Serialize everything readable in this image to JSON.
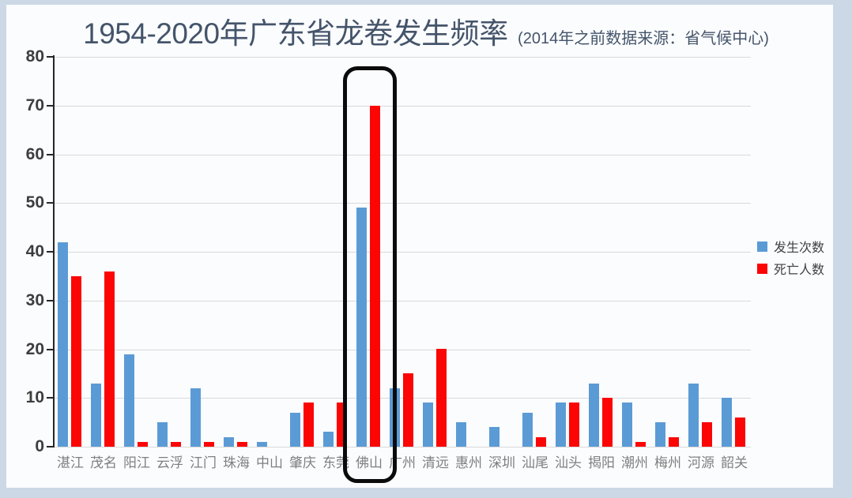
{
  "header": {
    "title": "1954-2020年广东省龙卷发生频率",
    "subtitle": "(2014年之前数据来源：省气候中心)"
  },
  "chart_data": {
    "type": "bar",
    "title": "1954-2020年广东省龙卷发生频率",
    "subtitle": "(2014年之前数据来源：省气候中心)",
    "categories": [
      "湛江",
      "茂名",
      "阳江",
      "云浮",
      "江门",
      "珠海",
      "中山",
      "肇庆",
      "东莞",
      "佛山",
      "广州",
      "清远",
      "惠州",
      "深圳",
      "汕尾",
      "汕头",
      "揭阳",
      "潮州",
      "梅州",
      "河源",
      "韶关"
    ],
    "series": [
      {
        "name": "发生次数",
        "color": "#5b9bd5",
        "values": [
          42,
          13,
          19,
          5,
          12,
          2,
          1,
          7,
          3,
          49,
          12,
          9,
          5,
          4,
          7,
          9,
          13,
          9,
          5,
          13,
          10
        ]
      },
      {
        "name": "死亡人数",
        "color": "#fb0505",
        "values": [
          35,
          36,
          1,
          1,
          1,
          1,
          0,
          9,
          9,
          70,
          15,
          20,
          0,
          0,
          2,
          9,
          10,
          1,
          2,
          5,
          6
        ]
      }
    ],
    "xlabel": "",
    "ylabel": "",
    "ylim": [
      0,
      80
    ],
    "yticks": [
      0,
      10,
      20,
      30,
      40,
      50,
      60,
      70,
      80
    ],
    "grid": true,
    "legend_position": "right",
    "highlighted_category": "佛山"
  },
  "colors": {
    "bar_blue": "#5b9bd5",
    "bar_red": "#fb0505",
    "frame_background": "#ccd8e5",
    "panel_background": "#fbfcfe",
    "title_text": "#44546a",
    "gridline": "#d9d9d9",
    "axis": "#262626",
    "x_label_text": "#7f7f7f",
    "y_label_text": "#3d3d3d",
    "highlight_stroke": "#0b0b0b"
  }
}
